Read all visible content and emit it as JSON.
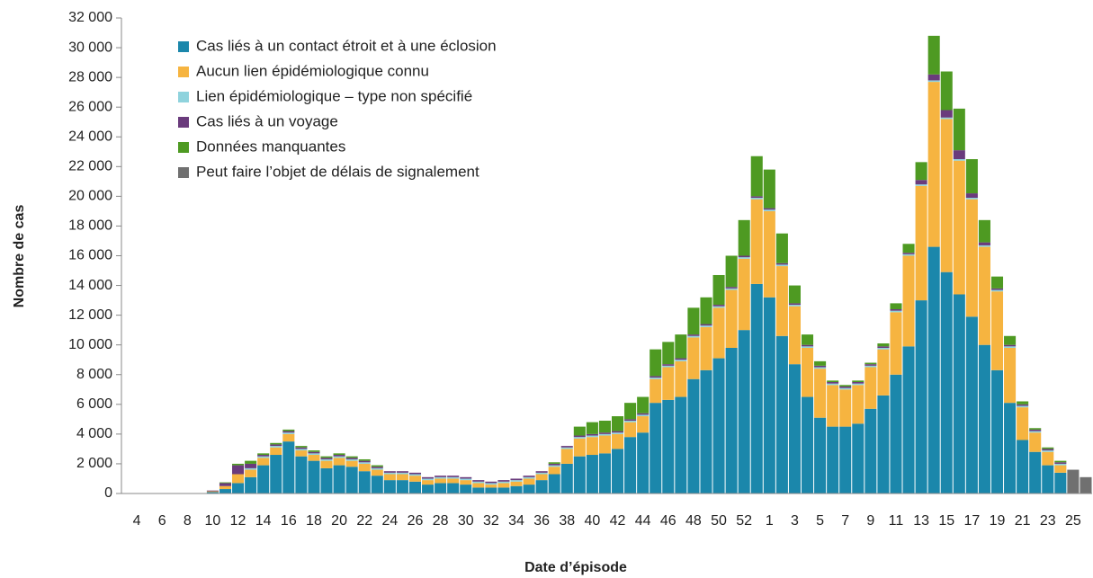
{
  "chart_data": {
    "type": "stacked_bar",
    "x_label": "Date d’épisode",
    "y_label": "Nombre de cas",
    "categories": [
      "4",
      null,
      "6",
      null,
      "8",
      null,
      "10",
      null,
      "12",
      null,
      "14",
      null,
      "16",
      null,
      "18",
      null,
      "20",
      null,
      "22",
      null,
      "24",
      null,
      "26",
      null,
      "28",
      null,
      "30",
      null,
      "32",
      null,
      "34",
      null,
      "36",
      null,
      "38",
      null,
      "40",
      null,
      "42",
      null,
      "44",
      null,
      "46",
      null,
      "48",
      null,
      "50",
      null,
      "52",
      null,
      "1",
      null,
      "3",
      null,
      "5",
      null,
      "7",
      null,
      "9",
      null,
      "11",
      null,
      "13",
      null,
      "15",
      null,
      "17",
      null,
      "19",
      null,
      "21",
      null,
      "23",
      null,
      "25",
      null
    ],
    "ylim": [
      0,
      32000
    ],
    "yticks": [
      0,
      {
        "value": 2000,
        "label": "2 000"
      },
      {
        "value": 4000,
        "label": "4 000"
      },
      {
        "value": 6000,
        "label": "6 000"
      },
      {
        "value": 8000,
        "label": "8 000"
      },
      {
        "value": 10000,
        "label": "10 000"
      },
      {
        "value": 12000,
        "label": "12 000"
      },
      {
        "value": 14000,
        "label": "14 000"
      },
      {
        "value": 16000,
        "label": "16 000"
      },
      {
        "value": 18000,
        "label": "18 000"
      },
      {
        "value": 20000,
        "label": "20 000"
      },
      {
        "value": 22000,
        "label": "22 000"
      },
      {
        "value": 24000,
        "label": "24 000"
      },
      {
        "value": 26000,
        "label": "26 000"
      },
      {
        "value": 28000,
        "label": "28 000"
      },
      {
        "value": 30000,
        "label": "30 000"
      },
      {
        "value": 32000,
        "label": "32 000"
      }
    ],
    "legend": "upper left",
    "series": [
      {
        "name": "Cas liés à un contact étroit et à une éclosion",
        "color": "#1b87ab",
        "values": [
          0,
          0,
          0,
          0,
          0,
          0,
          100,
          300,
          700,
          1100,
          1900,
          2600,
          3500,
          2500,
          2200,
          1700,
          1900,
          1800,
          1500,
          1200,
          900,
          900,
          800,
          600,
          700,
          700,
          600,
          400,
          400,
          400,
          500,
          600,
          900,
          1300,
          2000,
          2500,
          2600,
          2700,
          3000,
          3800,
          4100,
          6100,
          6300,
          6500,
          7700,
          8300,
          9100,
          9800,
          11000,
          14100,
          13200,
          10600,
          8700,
          6500,
          5100,
          4500,
          4500,
          4700,
          5700,
          6600,
          8000,
          9900,
          13000,
          16600,
          14900,
          13400,
          11900,
          10000,
          8300,
          6100,
          3600,
          2800,
          1900,
          1400,
          0,
          0
        ]
      },
      {
        "name": "Aucun lien épidémiologique connu",
        "color": "#f6b440",
        "values": [
          0,
          0,
          0,
          0,
          0,
          0,
          50,
          200,
          600,
          500,
          500,
          500,
          500,
          400,
          400,
          500,
          500,
          400,
          500,
          400,
          400,
          400,
          400,
          300,
          300,
          300,
          300,
          300,
          200,
          300,
          300,
          400,
          400,
          500,
          1000,
          1200,
          1200,
          1200,
          1000,
          1000,
          1100,
          1600,
          2200,
          2400,
          2800,
          2900,
          3400,
          3900,
          4800,
          5700,
          5800,
          4700,
          3900,
          3300,
          3300,
          2800,
          2500,
          2600,
          2800,
          3100,
          4200,
          6100,
          7700,
          11100,
          10300,
          9000,
          7900,
          6600,
          5300,
          3700,
          2200,
          1300,
          900,
          500,
          0,
          0
        ]
      },
      {
        "name": "Lien épidémiologique – type non spécifié",
        "color": "#8fd3dd",
        "values": [
          0,
          0,
          0,
          0,
          0,
          0,
          0,
          0,
          0,
          100,
          100,
          100,
          100,
          100,
          100,
          100,
          100,
          100,
          100,
          100,
          100,
          100,
          100,
          100,
          100,
          100,
          100,
          100,
          100,
          100,
          100,
          100,
          100,
          100,
          100,
          100,
          100,
          100,
          100,
          100,
          100,
          100,
          100,
          100,
          100,
          100,
          100,
          100,
          100,
          100,
          100,
          100,
          100,
          100,
          100,
          100,
          100,
          100,
          100,
          100,
          100,
          100,
          100,
          100,
          100,
          100,
          100,
          100,
          100,
          100,
          100,
          100,
          100,
          100,
          0,
          0
        ]
      },
      {
        "name": "Cas liés à un voyage",
        "color": "#6a3b7c",
        "values": [
          0,
          0,
          0,
          0,
          0,
          0,
          50,
          200,
          600,
          300,
          100,
          100,
          100,
          100,
          100,
          100,
          100,
          100,
          100,
          100,
          100,
          100,
          100,
          100,
          100,
          100,
          100,
          100,
          100,
          100,
          100,
          100,
          100,
          100,
          100,
          100,
          100,
          100,
          100,
          100,
          100,
          100,
          100,
          100,
          100,
          100,
          100,
          100,
          100,
          100,
          100,
          100,
          100,
          100,
          100,
          100,
          100,
          100,
          100,
          100,
          100,
          100,
          300,
          400,
          500,
          600,
          300,
          200,
          100,
          100,
          100,
          100,
          100,
          100,
          0,
          0
        ]
      },
      {
        "name": "Données manquantes",
        "color": "#4e9a22",
        "values": [
          0,
          0,
          0,
          0,
          0,
          0,
          0,
          50,
          100,
          200,
          100,
          100,
          100,
          100,
          100,
          100,
          100,
          100,
          100,
          100,
          0,
          0,
          0,
          0,
          0,
          0,
          0,
          0,
          0,
          0,
          0,
          0,
          0,
          100,
          0,
          600,
          800,
          800,
          1000,
          1100,
          1100,
          1800,
          1500,
          1600,
          1800,
          1800,
          2000,
          2100,
          2400,
          2700,
          2600,
          2000,
          1200,
          700,
          300,
          100,
          100,
          100,
          100,
          200,
          400,
          600,
          1200,
          2600,
          2600,
          2800,
          2300,
          1500,
          800,
          600,
          200,
          100,
          100,
          100,
          0,
          0
        ]
      },
      {
        "name": "Peut faire l’objet de délais de signalement",
        "color": "#707070",
        "values": [
          0,
          0,
          0,
          0,
          0,
          0,
          0,
          0,
          0,
          0,
          0,
          0,
          0,
          0,
          0,
          0,
          0,
          0,
          0,
          0,
          0,
          0,
          0,
          0,
          0,
          0,
          0,
          0,
          0,
          0,
          0,
          0,
          0,
          0,
          0,
          0,
          0,
          0,
          0,
          0,
          0,
          0,
          0,
          0,
          0,
          0,
          0,
          0,
          0,
          0,
          0,
          0,
          0,
          0,
          0,
          0,
          0,
          0,
          0,
          0,
          0,
          0,
          0,
          0,
          0,
          0,
          0,
          0,
          0,
          0,
          0,
          0,
          0,
          0,
          1600,
          1100
        ]
      }
    ]
  }
}
